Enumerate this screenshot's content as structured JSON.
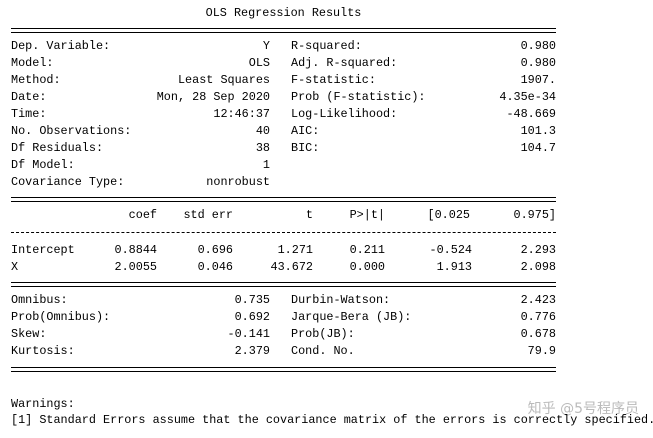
{
  "header": {
    "title": "OLS Regression Results"
  },
  "model_info": {
    "left": [
      {
        "label": "Dep. Variable:",
        "value": "Y"
      },
      {
        "label": "Model:",
        "value": "OLS"
      },
      {
        "label": "Method:",
        "value": "Least Squares"
      },
      {
        "label": "Date:",
        "value": "Mon, 28 Sep 2020"
      },
      {
        "label": "Time:",
        "value": "12:46:37"
      },
      {
        "label": "No. Observations:",
        "value": "40"
      },
      {
        "label": "Df Residuals:",
        "value": "38"
      },
      {
        "label": "Df Model:",
        "value": "1"
      },
      {
        "label": "Covariance Type:",
        "value": "nonrobust"
      }
    ],
    "right": [
      {
        "label": "R-squared:",
        "value": "0.980"
      },
      {
        "label": "Adj. R-squared:",
        "value": "0.980"
      },
      {
        "label": "F-statistic:",
        "value": "1907."
      },
      {
        "label": "Prob (F-statistic):",
        "value": "4.35e-34"
      },
      {
        "label": "Log-Likelihood:",
        "value": "-48.669"
      },
      {
        "label": "AIC:",
        "value": "101.3"
      },
      {
        "label": "BIC:",
        "value": "104.7"
      }
    ]
  },
  "coef_table": {
    "columns": [
      "coef",
      "std err",
      "t",
      "P>|t|",
      "[0.025",
      "0.975]"
    ],
    "rows": [
      [
        "Intercept",
        "0.8844",
        "0.696",
        "1.271",
        "0.211",
        "-0.524",
        "2.293"
      ],
      [
        "X",
        "2.0055",
        "0.046",
        "43.672",
        "0.000",
        "1.913",
        "2.098"
      ]
    ]
  },
  "diagnostics": {
    "left": [
      {
        "label": "Omnibus:",
        "value": "0.735"
      },
      {
        "label": "Prob(Omnibus):",
        "value": "0.692"
      },
      {
        "label": "Skew:",
        "value": "-0.141"
      },
      {
        "label": "Kurtosis:",
        "value": "2.379"
      }
    ],
    "right": [
      {
        "label": "Durbin-Watson:",
        "value": "2.423"
      },
      {
        "label": "Jarque-Bera (JB):",
        "value": "0.776"
      },
      {
        "label": "Prob(JB):",
        "value": "0.678"
      },
      {
        "label": "Cond. No.",
        "value": "79.9"
      }
    ]
  },
  "warnings": {
    "title": "Warnings:",
    "items": [
      "[1] Standard Errors assume that the covariance matrix of the errors is correctly specified."
    ]
  },
  "watermark": "知乎 @5号程序员"
}
